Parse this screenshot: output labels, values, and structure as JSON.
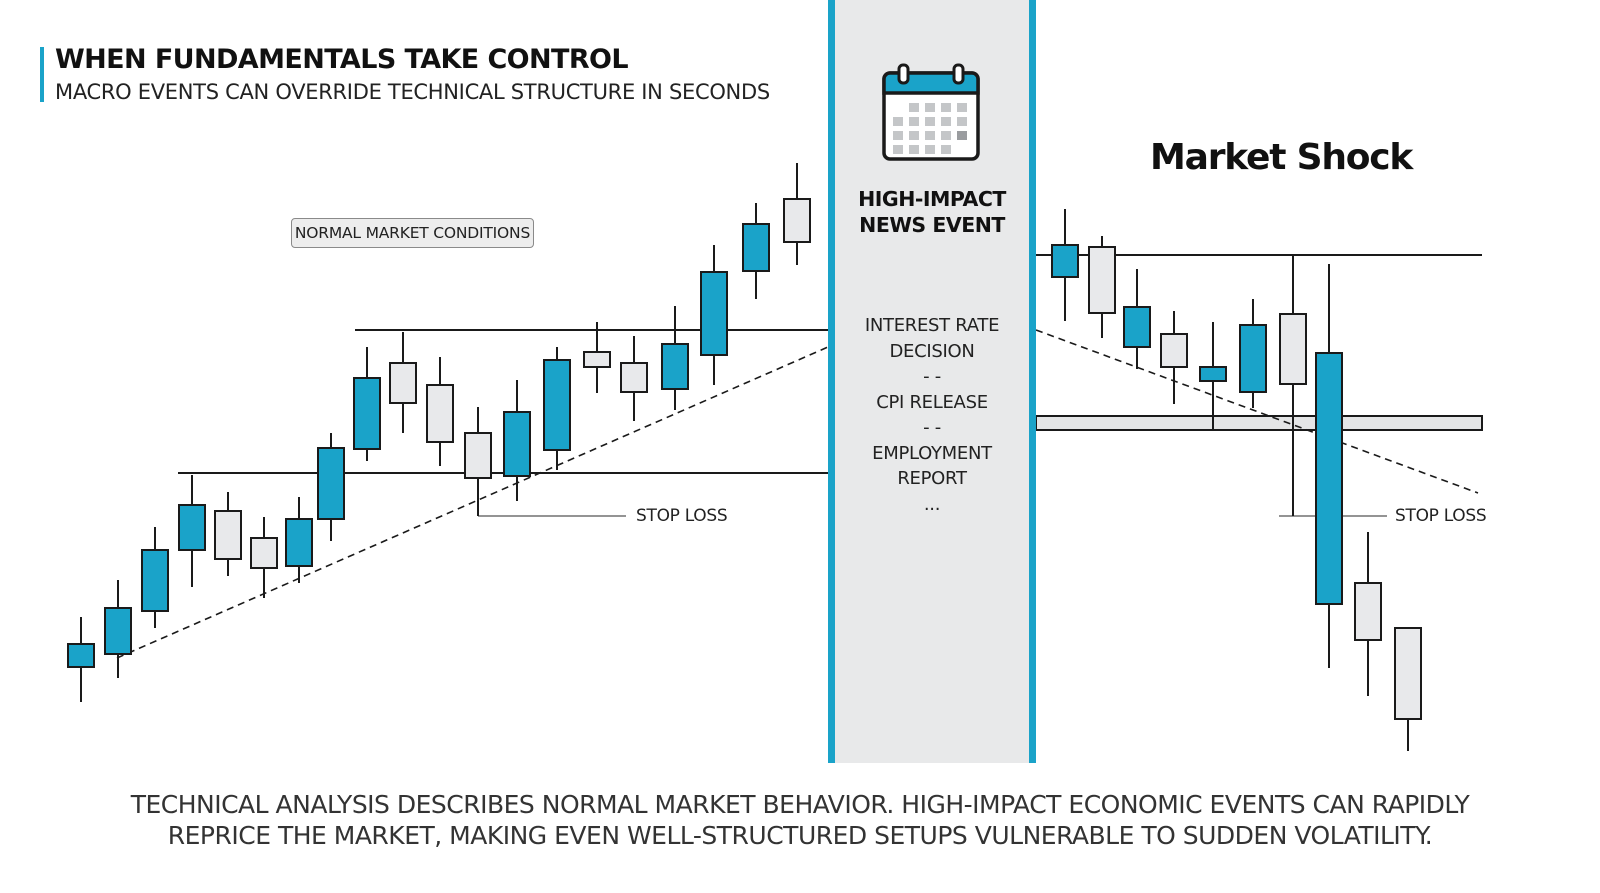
{
  "header": {
    "title": "WHEN FUNDAMENTALS TAKE CONTROL",
    "subtitle": "MACRO EVENTS CAN OVERRIDE TECHNICAL STRUCTURE IN SECONDS"
  },
  "left_panel": {
    "tag": "NORMAL MARKET CONDITIONS",
    "stop_loss_label": "STOP LOSS"
  },
  "event_panel": {
    "icon": "calendar-icon",
    "heading_line1": "HIGH-IMPACT",
    "heading_line2": "NEWS EVENT",
    "items": [
      "INTEREST RATE",
      "DECISION",
      "- -",
      "CPI RELEASE",
      "- -",
      "EMPLOYMENT",
      "REPORT",
      "..."
    ]
  },
  "right_panel": {
    "title": "Market Shock",
    "stop_loss_label": "STOP LOSS"
  },
  "footer": {
    "line1": "TECHNICAL ANALYSIS DESCRIBES NORMAL MARKET BEHAVIOR. HIGH-IMPACT ECONOMIC EVENTS CAN RAPIDLY",
    "line2": "REPRICE THE MARKET, MAKING EVEN WELL-STRUCTURED SETUPS VULNERABLE TO SUDDEN VOLATILITY."
  },
  "colors": {
    "accent": "#1aa3c9",
    "bullish_candle": "#1aa3c9",
    "bearish_candle": "#e8e9eb",
    "outline": "#1a1a1a",
    "panel_bg": "#e8e9ea"
  }
}
